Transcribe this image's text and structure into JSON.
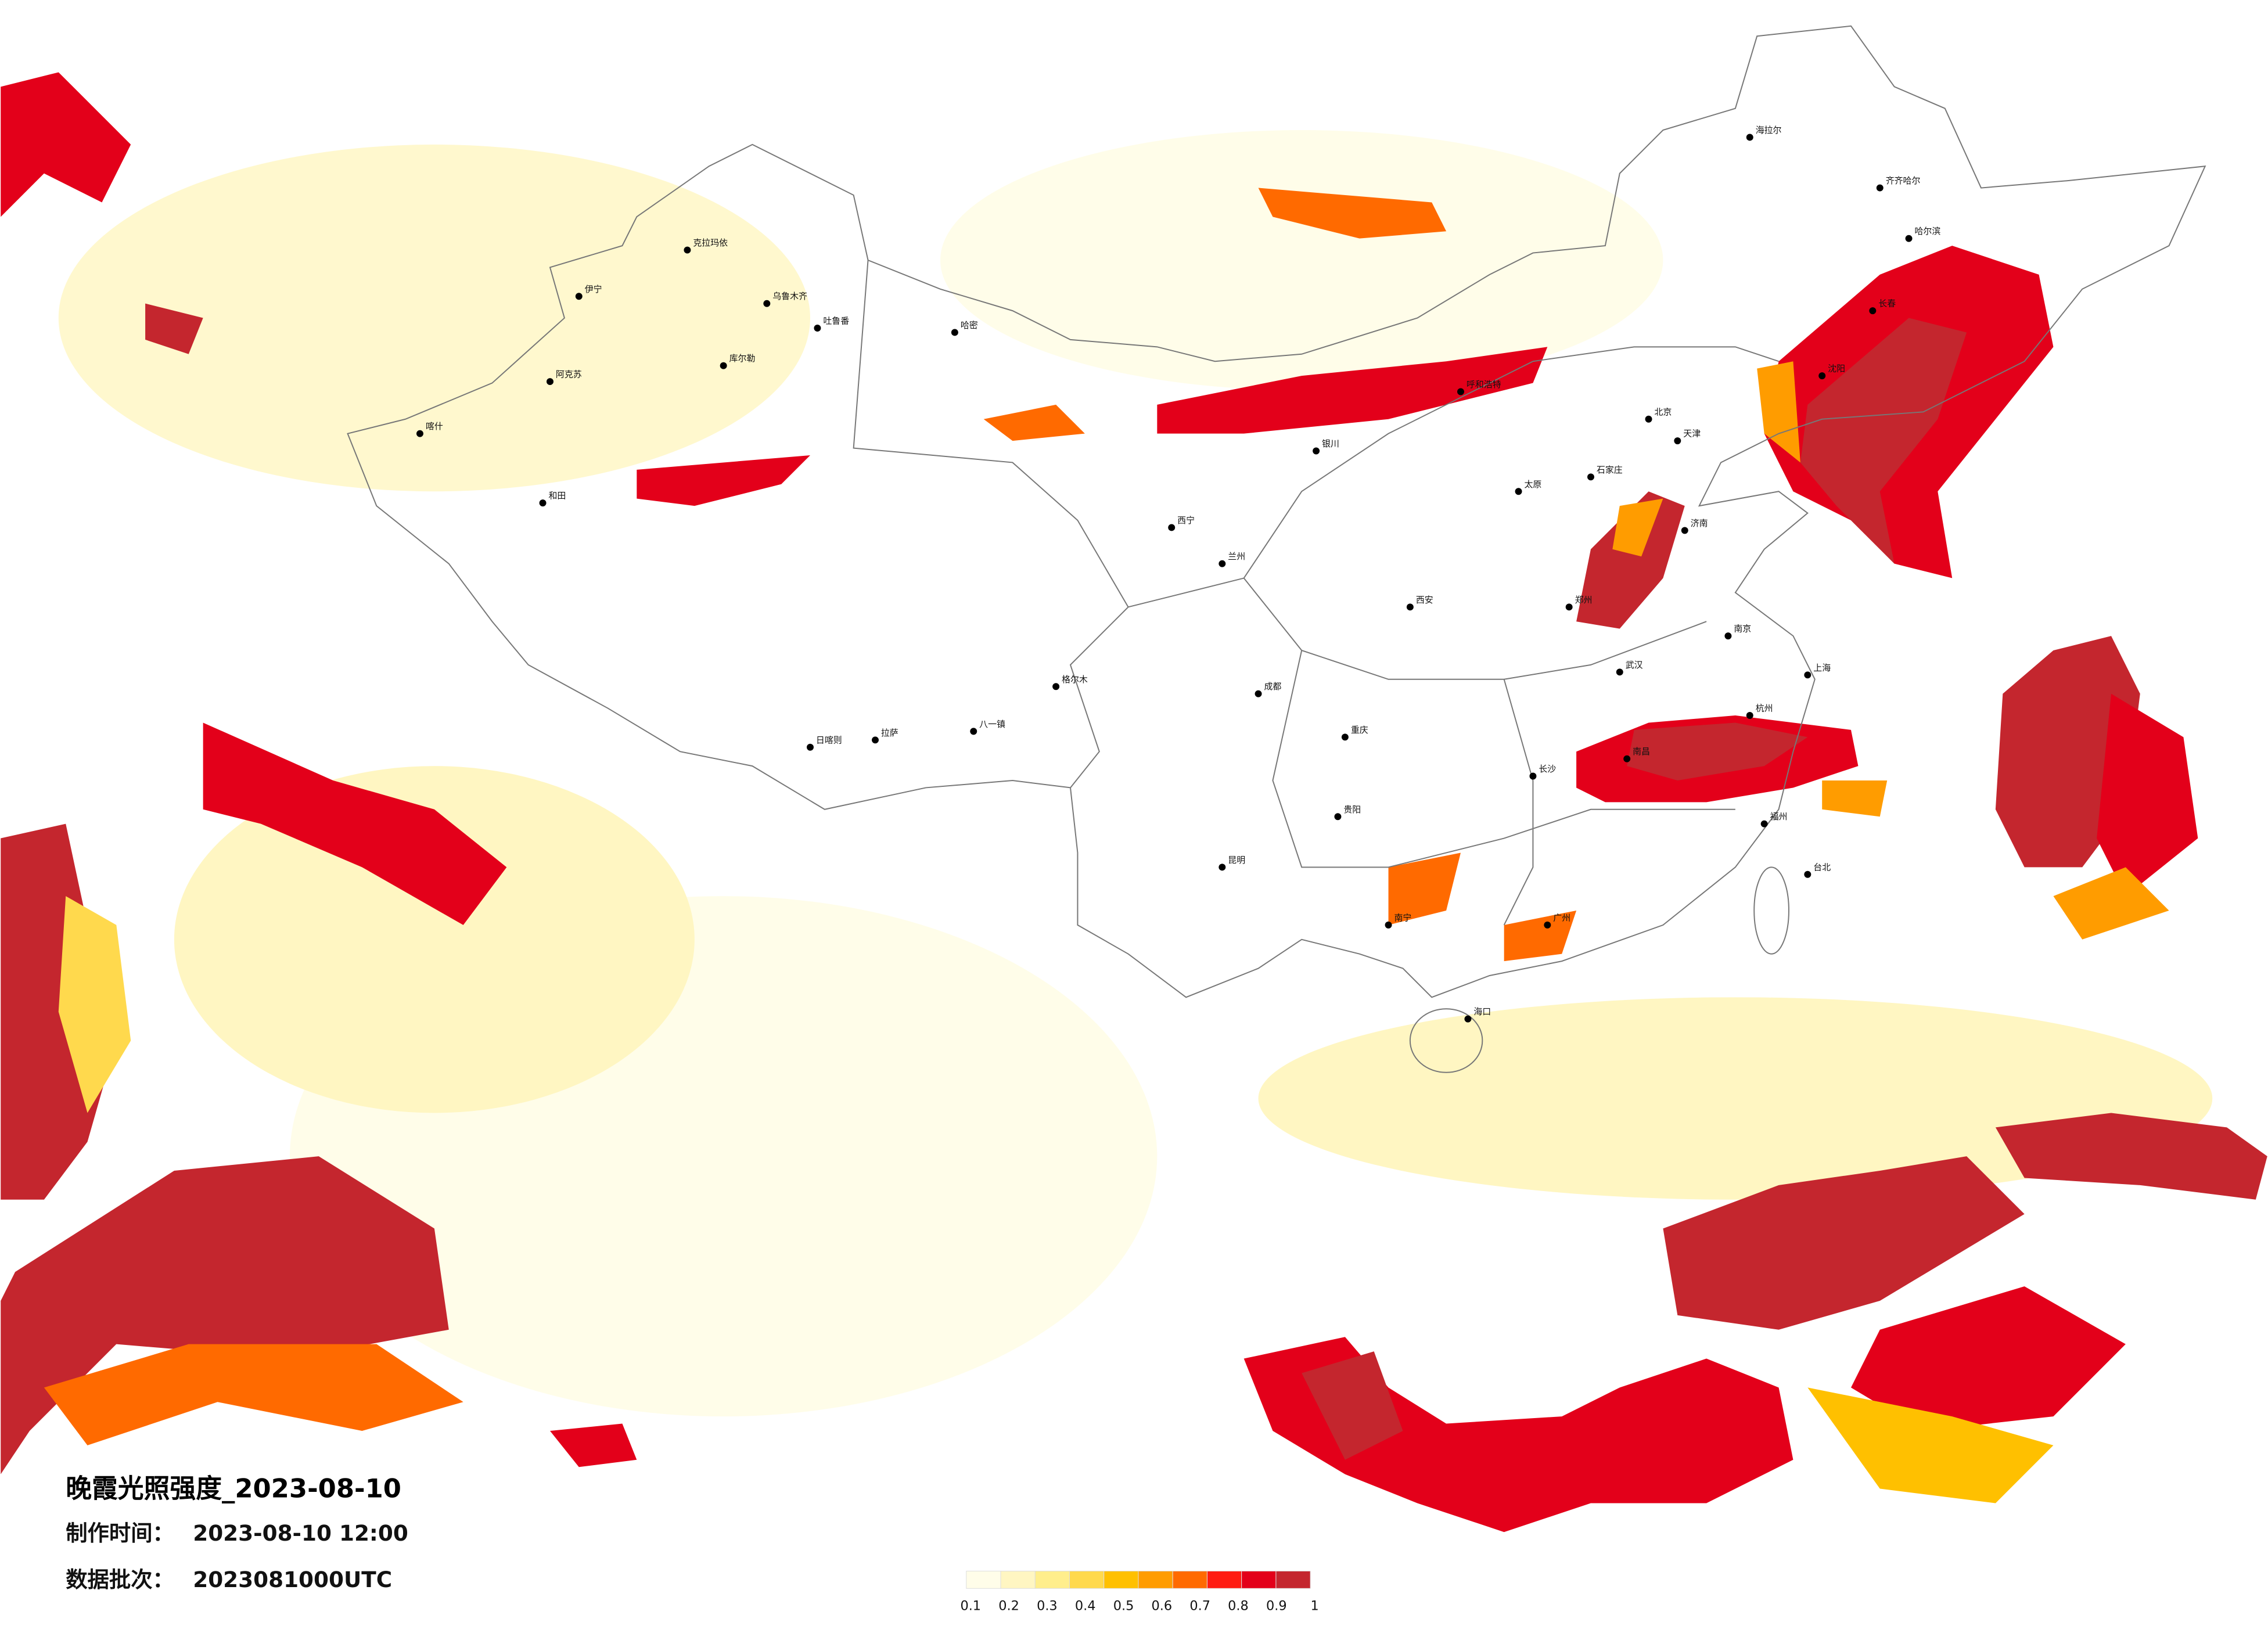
{
  "header": {
    "title": "晚霞光照强度_2023-08-10",
    "made_label": "制作时间：",
    "made_value": "2023-08-10 12:00",
    "batch_label": "数据批次：",
    "batch_value": "2023081000UTC"
  },
  "legend": {
    "ticks": [
      0.1,
      0.2,
      0.3,
      0.4,
      0.5,
      0.6,
      0.7,
      0.8,
      0.9,
      1
    ],
    "colors": [
      "#fffde9",
      "#fff6c2",
      "#ffee8c",
      "#ffd94d",
      "#ffc000",
      "#ff9c00",
      "#ff6a00",
      "#ff1c12",
      "#e3001a",
      "#c4262e"
    ]
  },
  "cities": [
    "克拉玛依",
    "乌鲁木齐",
    "吐鲁番",
    "哈密",
    "伊宁",
    "库尔勒",
    "阿克苏",
    "喀什",
    "和田",
    "日喀则",
    "拉萨",
    "八一镇",
    "格尔木",
    "西宁",
    "兰州",
    "银川",
    "呼和浩特",
    "北京",
    "天津",
    "石家庄",
    "太原",
    "济南",
    "郑州",
    "西安",
    "成都",
    "重庆",
    "武汉",
    "南京",
    "上海",
    "杭州",
    "长沙",
    "南昌",
    "福州",
    "贵阳",
    "昆明",
    "南宁",
    "广州",
    "海口",
    "台北",
    "哈尔滨",
    "长春",
    "沈阳",
    "海拉尔",
    "齐齐哈尔"
  ]
}
